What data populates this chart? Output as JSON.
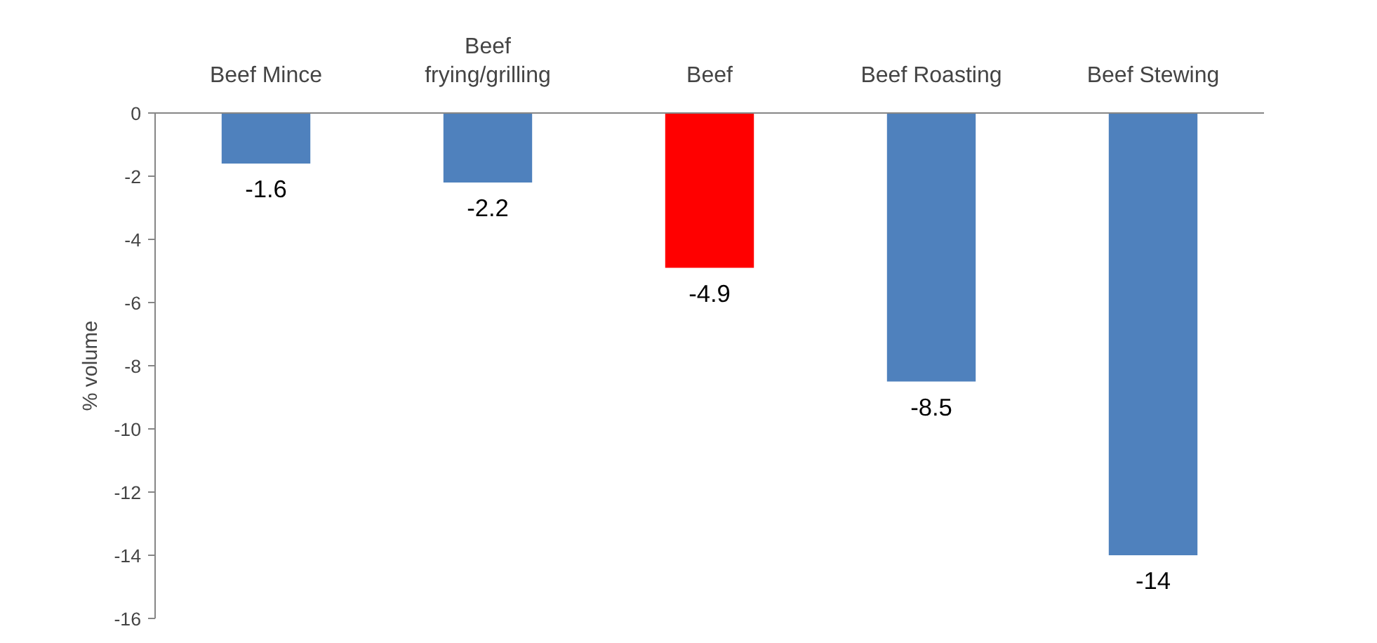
{
  "chart_data": {
    "type": "bar",
    "ylabel": "% volume",
    "categories": [
      "Beef Mince",
      "Beef frying/grilling",
      "Beef",
      "Beef Roasting",
      "Beef Stewing"
    ],
    "values": [
      -1.6,
      -2.2,
      -4.9,
      -8.5,
      -14
    ],
    "colors": [
      "#4f81bd",
      "#4f81bd",
      "#ff0000",
      "#4f81bd",
      "#4f81bd"
    ],
    "ylim": [
      -16,
      0
    ],
    "yticks": [
      0,
      -2,
      -4,
      -6,
      -8,
      -10,
      -12,
      -14,
      -16
    ],
    "data_labels": true,
    "grid": false
  }
}
